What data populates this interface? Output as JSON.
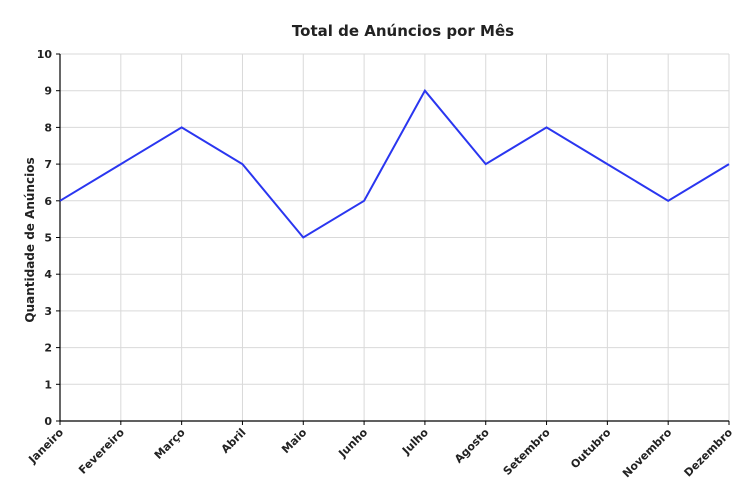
{
  "chart_data": {
    "type": "line",
    "title": "Total de Anúncios por Mês",
    "xlabel": "",
    "ylabel": "Quantidade de Anúncios",
    "categories": [
      "Janeiro",
      "Fevereiro",
      "Março",
      "Abril",
      "Maio",
      "Junho",
      "Julho",
      "Agosto",
      "Setembro",
      "Outubro",
      "Novembro",
      "Dezembro"
    ],
    "series": [
      {
        "values": [
          6,
          7,
          8,
          7,
          5,
          6,
          9,
          7,
          8,
          7,
          6,
          7
        ],
        "color": "#2a36f0"
      }
    ],
    "ylim": [
      0,
      10
    ],
    "yticks": [
      "0",
      "1",
      "2",
      "3",
      "4",
      "5",
      "6",
      "7",
      "8",
      "9",
      "10"
    ],
    "grid": true,
    "grid_color": "#d9d9d9",
    "axis_color": "#000000"
  }
}
